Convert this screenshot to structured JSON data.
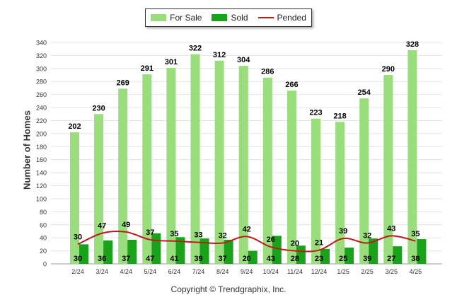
{
  "chart_data": {
    "type": "bar",
    "ylabel": "Number of Homes",
    "ylim": [
      0,
      340
    ],
    "yticks": [
      0,
      20,
      40,
      60,
      80,
      100,
      120,
      140,
      160,
      180,
      200,
      220,
      240,
      260,
      280,
      300,
      320,
      340
    ],
    "grid": true,
    "legend_placement": "top-center",
    "categories": [
      "2/24",
      "3/24",
      "4/24",
      "5/24",
      "6/24",
      "7/24",
      "8/24",
      "9/24",
      "10/24",
      "11/24",
      "12/24",
      "1/25",
      "2/25",
      "3/25",
      "4/25"
    ],
    "series": [
      {
        "name": "For Sale",
        "kind": "bar",
        "color": "#99dd7c",
        "values": [
          202,
          230,
          269,
          291,
          301,
          322,
          312,
          304,
          286,
          266,
          223,
          218,
          254,
          290,
          328
        ]
      },
      {
        "name": "Sold",
        "kind": "bar",
        "color": "#1aa31a",
        "values": [
          30,
          36,
          37,
          47,
          41,
          39,
          37,
          20,
          43,
          28,
          23,
          25,
          39,
          27,
          38
        ]
      },
      {
        "name": "Pended",
        "kind": "line",
        "color": "#c0191c",
        "values": [
          30,
          47,
          49,
          37,
          35,
          33,
          32,
          42,
          26,
          20,
          21,
          39,
          32,
          43,
          35
        ]
      }
    ]
  },
  "footer": {
    "copyright": "Copyright © Trendgraphix, Inc."
  }
}
